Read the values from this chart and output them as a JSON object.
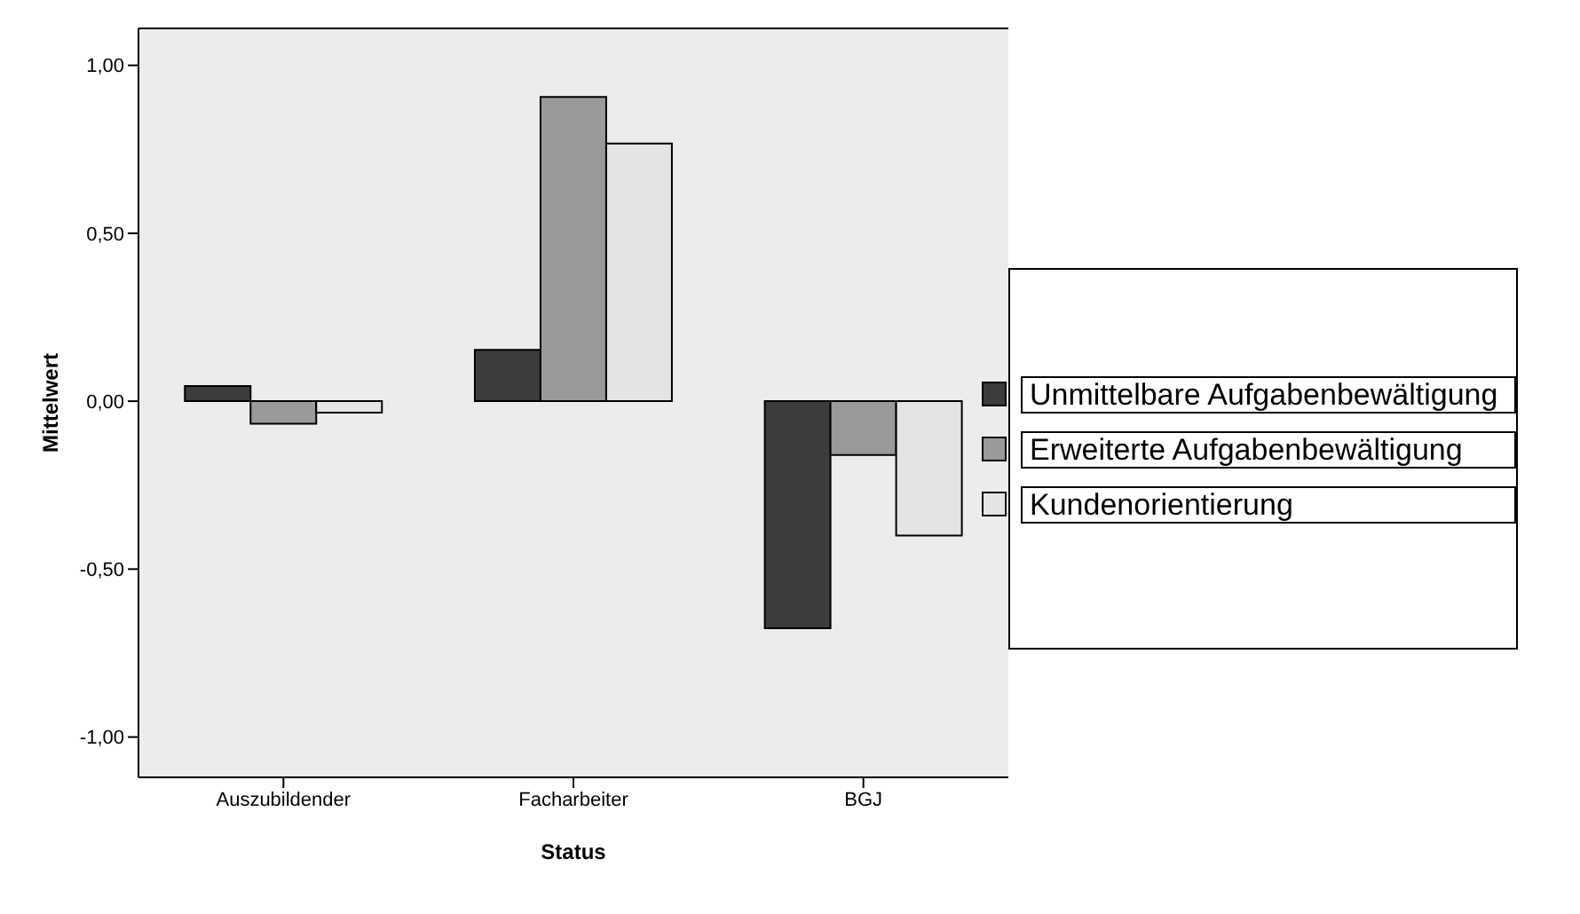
{
  "chart_data": {
    "type": "bar",
    "xlabel": "Status",
    "ylabel": "Mittelwert",
    "categories": [
      "Auszubildender",
      "Facharbeiter",
      "BGJ"
    ],
    "series": [
      {
        "name": "Unmittelbare Aufgabenbewältigung",
        "color": "#3c3c3c",
        "values": [
          0.045,
          0.153,
          -0.676
        ]
      },
      {
        "name": "Erweiterte Aufgabenbewältigung",
        "color": "#9a9a9a",
        "values": [
          -0.067,
          0.906,
          -0.16
        ]
      },
      {
        "name": "Kundenorientierung",
        "color": "#e4e4e4",
        "values": [
          -0.034,
          0.767,
          -0.4
        ]
      }
    ],
    "ylim": [
      -1.12,
      1.11
    ],
    "yticks": [
      {
        "value": -1,
        "label": "-1,00"
      },
      {
        "value": -0.5,
        "label": "-0,50"
      },
      {
        "value": 0,
        "label": "0,00"
      },
      {
        "value": 0.5,
        "label": "0,50"
      },
      {
        "value": 1,
        "label": "1,00"
      }
    ],
    "grid": false,
    "legend": "right"
  }
}
